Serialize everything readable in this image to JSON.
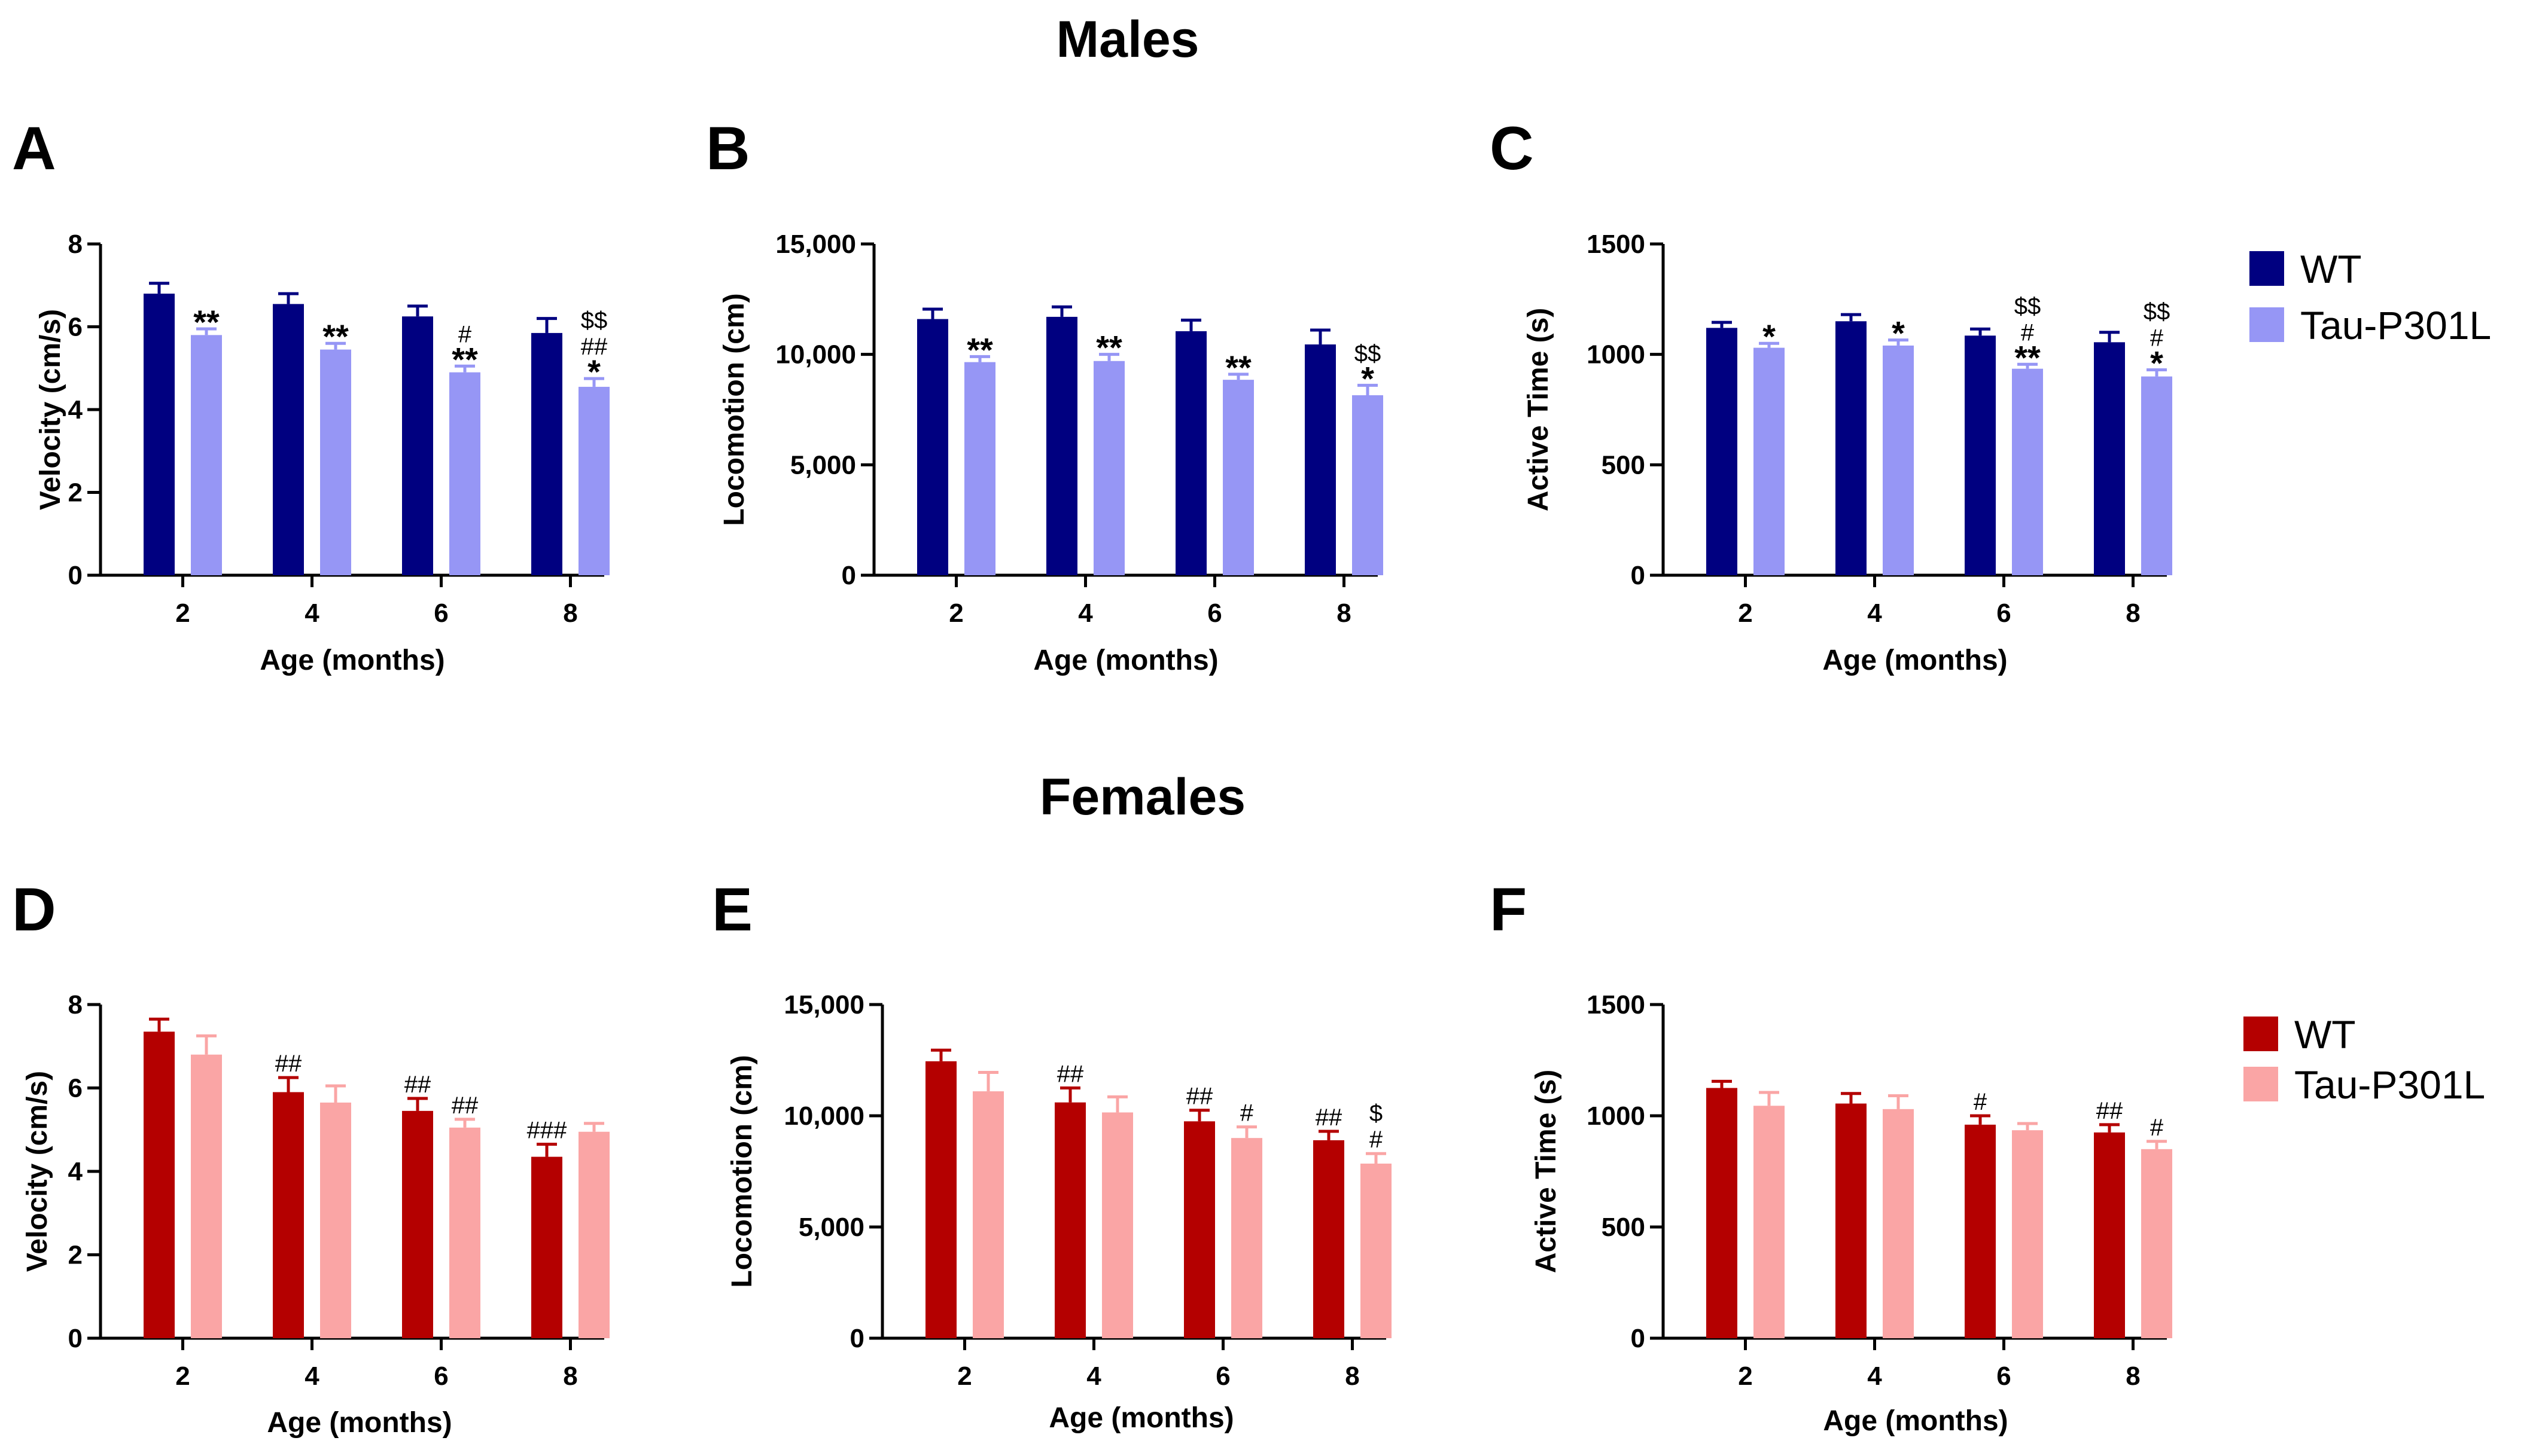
{
  "sections": {
    "males_title": "Males",
    "females_title": "Females"
  },
  "colors": {
    "male_wt": "#000080",
    "male_tau": "#9696F5",
    "female_wt": "#B40000",
    "female_tau": "#FAA5A5",
    "axis": "#000000"
  },
  "legends": {
    "males": [
      {
        "label": "WT",
        "color": "#000080"
      },
      {
        "label": "Tau-P301L",
        "color": "#9696F5"
      }
    ],
    "females": [
      {
        "label": "WT",
        "color": "#B40000"
      },
      {
        "label": "Tau-P301L",
        "color": "#FAA5A5"
      }
    ]
  },
  "chart_data": [
    {
      "panel": "A",
      "type": "bar",
      "sex": "Males",
      "xlabel": "Age (months)",
      "ylabel": "Velocity (cm/s)",
      "categories": [
        "2",
        "4",
        "6",
        "8"
      ],
      "ylim": [
        0,
        8
      ],
      "yticks": [
        "0",
        "2",
        "4",
        "6",
        "8"
      ],
      "ytick_values": [
        0,
        2,
        4,
        6,
        8
      ],
      "series": [
        {
          "name": "WT",
          "values": [
            6.8,
            6.55,
            6.25,
            5.85
          ],
          "errors": [
            0.25,
            0.25,
            0.25,
            0.35
          ]
        },
        {
          "name": "Tau-P301L",
          "values": [
            5.8,
            5.45,
            4.9,
            4.55
          ],
          "errors": [
            0.15,
            0.15,
            0.15,
            0.2
          ]
        }
      ],
      "annotations": [
        [
          "**"
        ],
        [
          "**"
        ],
        [
          "#",
          "**"
        ],
        [
          "$$",
          "##",
          "*"
        ]
      ]
    },
    {
      "panel": "B",
      "type": "bar",
      "sex": "Males",
      "xlabel": "Age (months)",
      "ylabel": "Locomotion (cm)",
      "categories": [
        "2",
        "4",
        "6",
        "8"
      ],
      "ylim": [
        0,
        15000
      ],
      "yticks": [
        "0",
        "5,000",
        "10,000",
        "15,000"
      ],
      "ytick_values": [
        0,
        5000,
        10000,
        15000
      ],
      "series": [
        {
          "name": "WT",
          "values": [
            11600,
            11700,
            11050,
            10450
          ],
          "errors": [
            450,
            450,
            500,
            650
          ]
        },
        {
          "name": "Tau-P301L",
          "values": [
            9650,
            9700,
            8850,
            8150
          ],
          "errors": [
            250,
            300,
            250,
            450
          ]
        }
      ],
      "annotations": [
        [
          "**"
        ],
        [
          "**"
        ],
        [
          "**"
        ],
        [
          "$$",
          "*"
        ]
      ]
    },
    {
      "panel": "C",
      "type": "bar",
      "sex": "Males",
      "xlabel": "Age (months)",
      "ylabel": "Active Time  (s)",
      "categories": [
        "2",
        "4",
        "6",
        "8"
      ],
      "ylim": [
        0,
        1500
      ],
      "yticks": [
        "0",
        "500",
        "1000",
        "1500"
      ],
      "ytick_values": [
        0,
        500,
        1000,
        1500
      ],
      "series": [
        {
          "name": "WT",
          "values": [
            1120,
            1150,
            1085,
            1055
          ],
          "errors": [
            25,
            30,
            30,
            45
          ]
        },
        {
          "name": "Tau-P301L",
          "values": [
            1030,
            1040,
            935,
            900
          ],
          "errors": [
            20,
            25,
            20,
            30
          ]
        }
      ],
      "annotations": [
        [
          "*"
        ],
        [
          "*"
        ],
        [
          "$$",
          "#",
          "**"
        ],
        [
          "$$",
          "#",
          "*"
        ]
      ]
    },
    {
      "panel": "D",
      "type": "bar",
      "sex": "Females",
      "xlabel": "Age (months)",
      "ylabel": "Velocity (cm/s)",
      "categories": [
        "2",
        "4",
        "6",
        "8"
      ],
      "ylim": [
        0,
        8
      ],
      "yticks": [
        "0",
        "2",
        "4",
        "6",
        "8"
      ],
      "ytick_values": [
        0,
        2,
        4,
        6,
        8
      ],
      "series": [
        {
          "name": "WT",
          "values": [
            7.35,
            5.9,
            5.45,
            4.35
          ],
          "errors": [
            0.3,
            0.35,
            0.3,
            0.3
          ]
        },
        {
          "name": "Tau-P301L",
          "values": [
            6.8,
            5.65,
            5.05,
            4.95
          ],
          "errors": [
            0.45,
            0.4,
            0.2,
            0.2
          ]
        }
      ],
      "wt_annotations": [
        [],
        [
          "##"
        ],
        [
          "##"
        ],
        [
          "###"
        ]
      ],
      "annotations": [
        [],
        [],
        [
          "##"
        ],
        []
      ]
    },
    {
      "panel": "E",
      "type": "bar",
      "sex": "Females",
      "xlabel": "Age (months)",
      "ylabel": "Locomotion (cm)",
      "categories": [
        "2",
        "4",
        "6",
        "8"
      ],
      "ylim": [
        0,
        15000
      ],
      "yticks": [
        "0",
        "5,000",
        "10,000",
        "15,000"
      ],
      "ytick_values": [
        0,
        5000,
        10000,
        15000
      ],
      "series": [
        {
          "name": "WT",
          "values": [
            12450,
            10600,
            9750,
            8900
          ],
          "errors": [
            500,
            650,
            500,
            400
          ]
        },
        {
          "name": "Tau-P301L",
          "values": [
            11100,
            10150,
            9000,
            7850
          ],
          "errors": [
            850,
            700,
            500,
            450
          ]
        }
      ],
      "wt_annotations": [
        [],
        [
          "##"
        ],
        [
          "##"
        ],
        [
          "##"
        ]
      ],
      "annotations": [
        [],
        [],
        [
          "#"
        ],
        [
          "$",
          "#"
        ]
      ]
    },
    {
      "panel": "F",
      "type": "bar",
      "sex": "Females",
      "xlabel": "Age (months)",
      "ylabel": "Active Time  (s)",
      "categories": [
        "2",
        "4",
        "6",
        "8"
      ],
      "ylim": [
        0,
        1500
      ],
      "yticks": [
        "0",
        "500",
        "1000",
        "1500"
      ],
      "ytick_values": [
        0,
        500,
        1000,
        1500
      ],
      "series": [
        {
          "name": "WT",
          "values": [
            1125,
            1055,
            960,
            925
          ],
          "errors": [
            30,
            45,
            40,
            35
          ]
        },
        {
          "name": "Tau-P301L",
          "values": [
            1045,
            1030,
            935,
            850
          ],
          "errors": [
            60,
            60,
            30,
            35
          ]
        }
      ],
      "wt_annotations": [
        [],
        [],
        [
          "#"
        ],
        [
          "##"
        ]
      ],
      "annotations": [
        [],
        [],
        [],
        [
          "#"
        ]
      ]
    }
  ]
}
